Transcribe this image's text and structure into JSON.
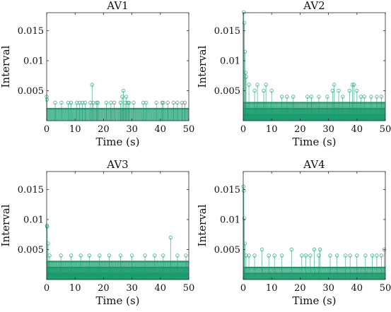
{
  "chart_data": [
    {
      "type": "stem",
      "title": "AV1",
      "xlabel": "Time (s)",
      "ylabel": "Interval",
      "xlim": [
        0,
        50
      ],
      "ylim": [
        0,
        0.018
      ],
      "xticks": [
        "0",
        "10",
        "20",
        "30",
        "40",
        "50"
      ],
      "yticks": [
        "0.005",
        "0.01",
        "0.015"
      ],
      "grid": false,
      "series": [
        {
          "band_levels": [
            0.002
          ],
          "x": [
            0,
            0.1,
            3.0,
            5.2,
            7.6,
            8.6,
            10.6,
            11.6,
            12.6,
            13.6,
            15.4,
            16.0,
            16.4,
            17.6,
            18.0,
            21.0,
            22.6,
            23.8,
            26.0,
            26.6,
            27.0,
            27.6,
            28.0,
            28.6,
            29.0,
            30.6,
            34.0,
            35.0,
            38.6,
            40.6,
            41.0,
            42.6,
            44.6,
            46.0,
            47.6,
            48.6
          ],
          "y": [
            0.004,
            0.0035,
            0.003,
            0.003,
            0.003,
            0.003,
            0.003,
            0.003,
            0.003,
            0.003,
            0.003,
            0.006,
            0.003,
            0.003,
            0.003,
            0.003,
            0.003,
            0.003,
            0.003,
            0.004,
            0.005,
            0.003,
            0.004,
            0.003,
            0.003,
            0.003,
            0.003,
            0.003,
            0.003,
            0.003,
            0.003,
            0.003,
            0.003,
            0.003,
            0.003,
            0.003
          ]
        }
      ]
    },
    {
      "type": "stem",
      "title": "AV2",
      "xlabel": "Time (s)",
      "ylabel": "Interval",
      "xlim": [
        0,
        50
      ],
      "ylim": [
        0,
        0.018
      ],
      "xticks": [
        "0",
        "10",
        "20",
        "30",
        "40",
        "50"
      ],
      "yticks": [
        "0.005",
        "0.01",
        "0.015"
      ],
      "grid": false,
      "series": [
        {
          "band_levels": [
            0.001,
            0.002,
            0.003
          ],
          "x": [
            0.2,
            0.4,
            0.6,
            0.8,
            1.0,
            2.0,
            4.0,
            5.0,
            7.2,
            8.0,
            10.0,
            13.6,
            15.4,
            17.6,
            22.6,
            24.0,
            26.6,
            29.6,
            31.4,
            32.0,
            33.6,
            35.0,
            37.4,
            38.4,
            39.0,
            40.0,
            41.4,
            42.6,
            45.0,
            47.0,
            48.6
          ],
          "y": [
            0.0181,
            0.0163,
            0.0115,
            0.008,
            0.0073,
            0.006,
            0.005,
            0.006,
            0.005,
            0.006,
            0.005,
            0.004,
            0.004,
            0.004,
            0.004,
            0.004,
            0.004,
            0.004,
            0.005,
            0.006,
            0.005,
            0.004,
            0.005,
            0.006,
            0.006,
            0.005,
            0.004,
            0.004,
            0.004,
            0.004,
            0.004
          ]
        }
      ]
    },
    {
      "type": "stem",
      "title": "AV3",
      "xlabel": "Time (s)",
      "ylabel": "Interval",
      "xlim": [
        0,
        50
      ],
      "ylim": [
        0,
        0.018
      ],
      "xticks": [
        "0",
        "10",
        "20",
        "30",
        "40",
        "50"
      ],
      "yticks": [
        "0.005",
        "0.01",
        "0.015"
      ],
      "grid": false,
      "series": [
        {
          "band_levels": [
            0.001,
            0.002,
            0.003
          ],
          "x": [
            0.1,
            0.2,
            0.5,
            1.0,
            5.0,
            8.6,
            12.0,
            15.0,
            18.6,
            22.0,
            26.0,
            30.0,
            34.6,
            38.0,
            41.0,
            43.6,
            46.0,
            49.0
          ],
          "y": [
            0.009,
            0.0088,
            0.006,
            0.004,
            0.004,
            0.004,
            0.004,
            0.004,
            0.004,
            0.004,
            0.004,
            0.004,
            0.004,
            0.004,
            0.004,
            0.007,
            0.004,
            0.004
          ]
        }
      ]
    },
    {
      "type": "stem",
      "title": "AV4",
      "xlabel": "Time (s)",
      "ylabel": "Interval",
      "xlim": [
        0,
        50
      ],
      "ylim": [
        0,
        0.018
      ],
      "xticks": [
        "0",
        "10",
        "20",
        "30",
        "40",
        "50"
      ],
      "yticks": [
        "0.005",
        "0.01",
        "0.015"
      ],
      "grid": false,
      "series": [
        {
          "band_levels": [
            0.001,
            0.002
          ],
          "x": [
            0.1,
            0.2,
            0.4,
            0.6,
            1.0,
            2.0,
            4.0,
            6.6,
            9.0,
            11.0,
            13.6,
            17.0,
            20.6,
            22.0,
            23.6,
            25.0,
            26.6,
            27.0,
            30.6,
            33.0,
            36.0,
            37.6,
            40.0,
            43.0,
            45.4,
            47.0,
            48.6,
            49.6
          ],
          "y": [
            0.0155,
            0.0148,
            0.0102,
            0.006,
            0.004,
            0.004,
            0.004,
            0.005,
            0.004,
            0.004,
            0.004,
            0.005,
            0.004,
            0.004,
            0.004,
            0.005,
            0.004,
            0.005,
            0.004,
            0.004,
            0.004,
            0.004,
            0.004,
            0.004,
            0.004,
            0.004,
            0.004,
            0.005
          ]
        }
      ]
    }
  ],
  "colors": {
    "stem": "#1a9b6c",
    "axis": "#262626"
  }
}
